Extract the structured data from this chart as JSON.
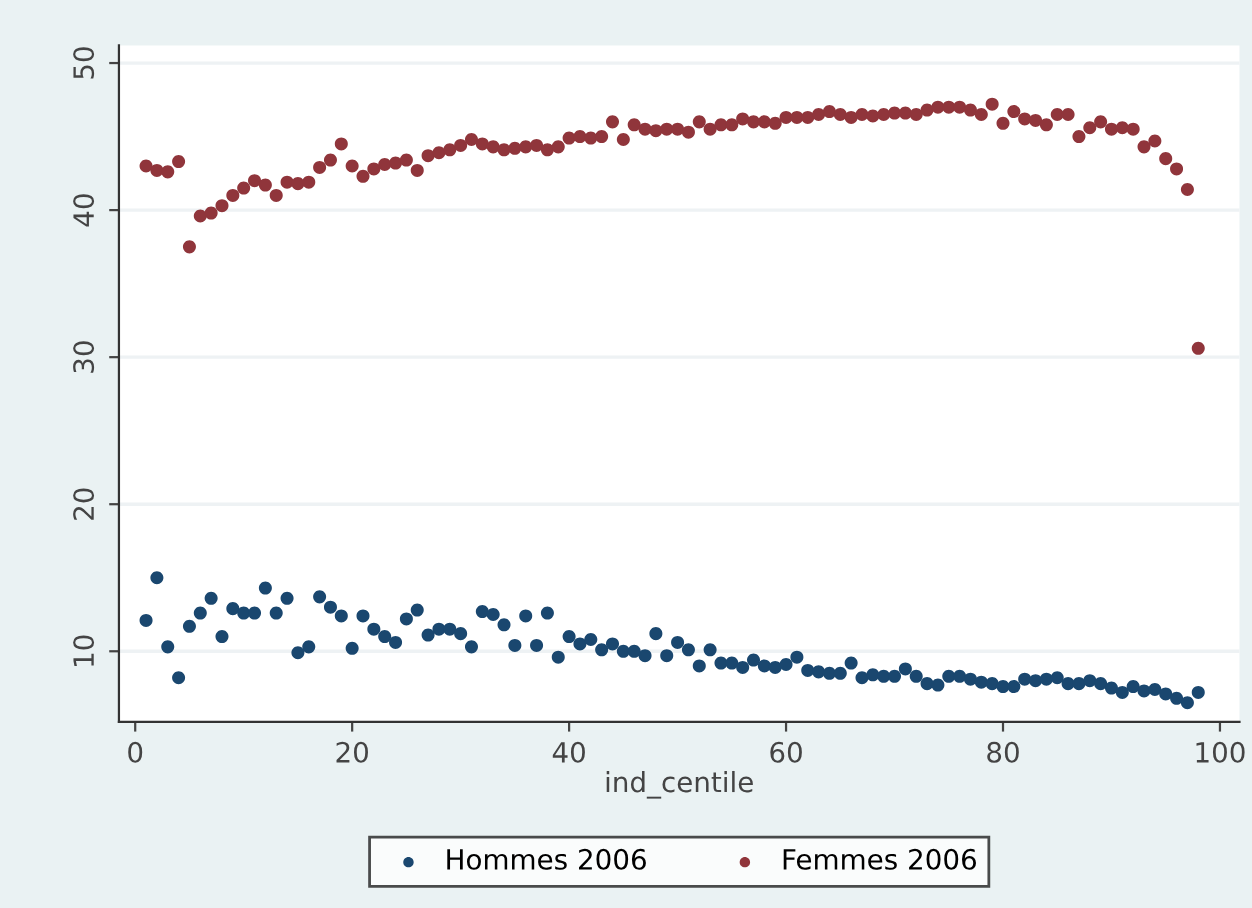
{
  "chart_data": {
    "type": "scatter",
    "xlabel": "ind_centile",
    "xlim": [
      -1.5,
      101.8
    ],
    "ylim": [
      5.2,
      51.2
    ],
    "xticks": [
      0,
      20,
      40,
      60,
      80,
      100
    ],
    "yticks": [
      10,
      20,
      30,
      40,
      50
    ],
    "grid": "y",
    "legend": "bottom",
    "marker": "circle",
    "x": [
      1,
      2,
      3,
      4,
      5,
      6,
      7,
      8,
      9,
      10,
      11,
      12,
      13,
      14,
      15,
      16,
      17,
      18,
      19,
      20,
      21,
      22,
      23,
      24,
      25,
      26,
      27,
      28,
      29,
      30,
      31,
      32,
      33,
      34,
      35,
      36,
      37,
      38,
      39,
      40,
      41,
      42,
      43,
      44,
      45,
      46,
      47,
      48,
      49,
      50,
      51,
      52,
      53,
      54,
      55,
      56,
      57,
      58,
      59,
      60,
      61,
      62,
      63,
      64,
      65,
      66,
      67,
      68,
      69,
      70,
      71,
      72,
      73,
      74,
      75,
      76,
      77,
      78,
      79,
      80,
      81,
      82,
      83,
      84,
      85,
      86,
      87,
      88,
      89,
      90,
      91,
      92,
      93,
      94,
      95,
      96,
      97,
      98
    ],
    "series": [
      {
        "name": "Hommes 2006",
        "color": "#1a476f",
        "values": [
          12.1,
          15.0,
          10.3,
          8.2,
          11.7,
          12.6,
          13.6,
          11.0,
          12.9,
          12.6,
          12.6,
          14.3,
          12.6,
          13.6,
          9.9,
          10.3,
          13.7,
          13.0,
          12.4,
          10.2,
          12.4,
          11.5,
          11.0,
          10.6,
          12.2,
          12.8,
          11.1,
          11.5,
          11.5,
          11.2,
          10.3,
          12.7,
          12.5,
          11.8,
          10.4,
          12.4,
          10.4,
          12.6,
          9.6,
          11.0,
          10.5,
          10.8,
          10.1,
          10.5,
          10.0,
          10.0,
          9.7,
          11.2,
          9.7,
          10.6,
          10.1,
          9.0,
          10.1,
          9.2,
          9.2,
          8.9,
          9.4,
          9.0,
          8.9,
          9.1,
          9.6,
          8.7,
          8.6,
          8.5,
          8.5,
          9.2,
          8.2,
          8.4,
          8.3,
          8.3,
          8.8,
          8.3,
          7.8,
          7.7,
          8.3,
          8.3,
          8.1,
          7.9,
          7.8,
          7.6,
          7.6,
          8.1,
          8.0,
          8.1,
          8.2,
          7.8,
          7.8,
          8.0,
          7.8,
          7.5,
          7.2,
          7.6,
          7.3,
          7.4,
          7.1,
          6.8,
          6.5,
          7.2
        ]
      },
      {
        "name": "Femmes 2006",
        "color": "#90353b",
        "values": [
          43.0,
          42.7,
          42.6,
          43.3,
          37.5,
          39.6,
          39.8,
          40.3,
          41.0,
          41.5,
          42.0,
          41.7,
          41.0,
          41.9,
          41.8,
          41.9,
          42.9,
          43.4,
          44.5,
          43.0,
          42.3,
          42.8,
          43.1,
          43.2,
          43.4,
          42.7,
          43.7,
          43.9,
          44.1,
          44.4,
          44.8,
          44.5,
          44.3,
          44.1,
          44.2,
          44.3,
          44.4,
          44.1,
          44.3,
          44.9,
          45.0,
          44.9,
          45.0,
          46.0,
          44.8,
          45.8,
          45.5,
          45.4,
          45.5,
          45.5,
          45.3,
          46.0,
          45.5,
          45.8,
          45.8,
          46.2,
          46.0,
          46.0,
          45.9,
          46.3,
          46.3,
          46.3,
          46.5,
          46.7,
          46.5,
          46.3,
          46.5,
          46.4,
          46.5,
          46.6,
          46.6,
          46.5,
          46.8,
          47.0,
          47.0,
          47.0,
          46.8,
          46.5,
          47.2,
          45.9,
          46.7,
          46.2,
          46.1,
          45.8,
          46.5,
          46.5,
          45.0,
          45.6,
          46.0,
          45.5,
          45.6,
          45.5,
          44.3,
          44.7,
          43.5,
          42.8,
          41.4,
          30.6
        ]
      }
    ]
  }
}
